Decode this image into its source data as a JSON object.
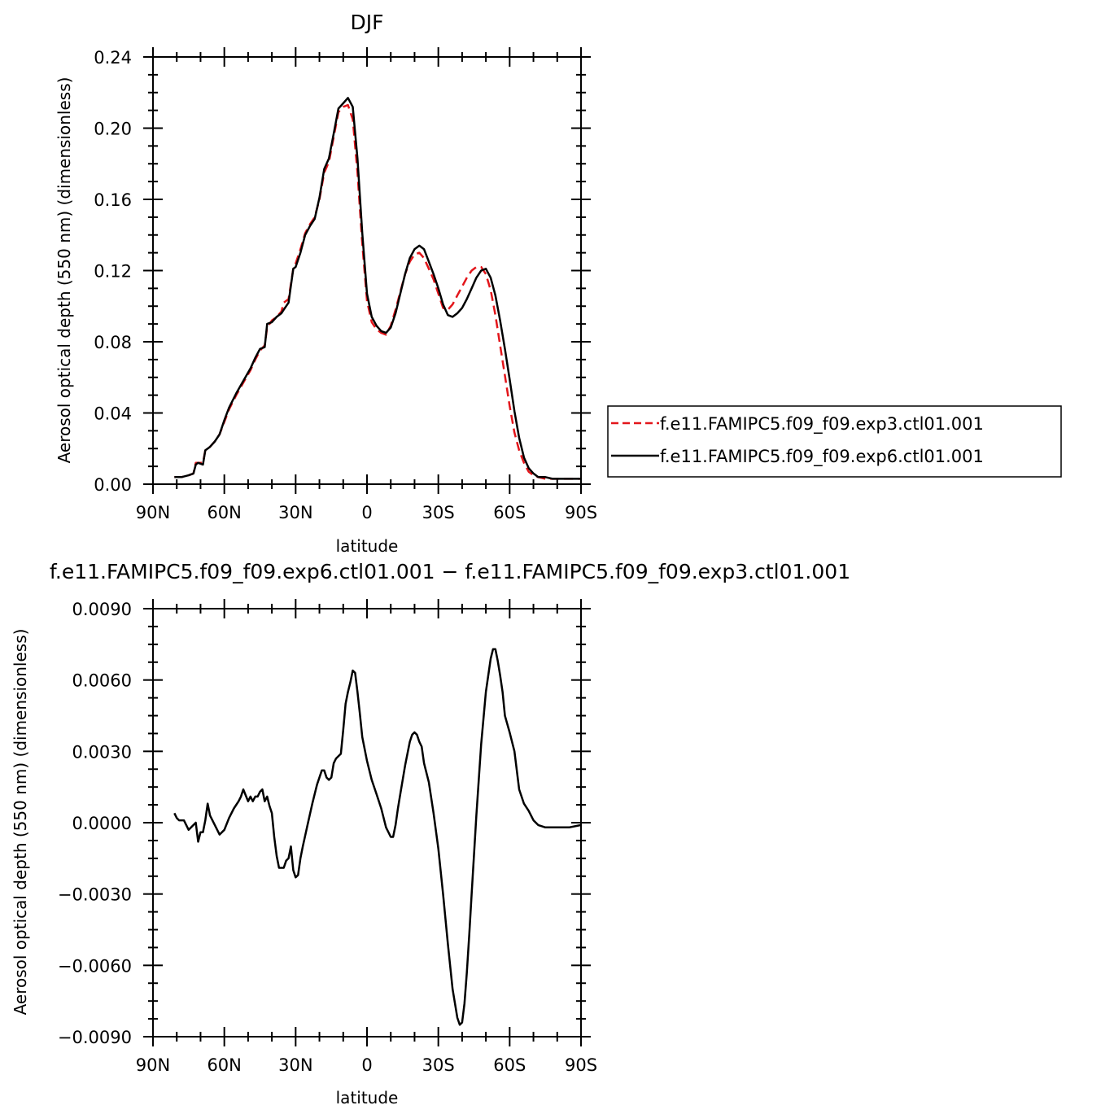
{
  "chart_data": [
    {
      "type": "line",
      "title": "DJF",
      "xlabel": "latitude",
      "ylabel": "Aerosol optical depth (550 nm) (dimensionless)",
      "xlim": [
        -90,
        90
      ],
      "ylim": [
        0.0,
        0.24
      ],
      "x_ticks": [
        "90N",
        "60N",
        "30N",
        "0",
        "30S",
        "60S",
        "90S"
      ],
      "y_ticks": [
        "0.00",
        "0.04",
        "0.08",
        "0.12",
        "0.16",
        "0.20",
        "0.24"
      ],
      "legend_position": "right",
      "series": [
        {
          "name": "f.e11.FAMIPC5.f09_f09.exp3.ctl01.001",
          "color": "#e3161b",
          "dash": "dashed",
          "x": [
            -81,
            -78,
            -75,
            -73,
            -72,
            -71,
            -69,
            -68,
            -66,
            -64,
            -62,
            -60,
            -58,
            -55,
            -52,
            -49,
            -47,
            -45,
            -43,
            -42,
            -40,
            -38,
            -36,
            -35,
            -33,
            -31,
            -30,
            -28,
            -26,
            -24,
            -22,
            -20,
            -18,
            -16,
            -14,
            -12,
            -10,
            -8,
            -6,
            -4,
            -2,
            0,
            2,
            4,
            6,
            8,
            10,
            12,
            14,
            16,
            18,
            20,
            22,
            24,
            26,
            28,
            30,
            32,
            34,
            36,
            38,
            40,
            42,
            44,
            46,
            48,
            50,
            52,
            54,
            56,
            58,
            60,
            62,
            64,
            66,
            68,
            70,
            72,
            75,
            78,
            82,
            86,
            90
          ],
          "y": [
            0.004,
            0.004,
            0.005,
            0.006,
            0.012,
            0.012,
            0.012,
            0.019,
            0.021,
            0.024,
            0.028,
            0.035,
            0.042,
            0.05,
            0.057,
            0.064,
            0.07,
            0.075,
            0.078,
            0.088,
            0.092,
            0.094,
            0.097,
            0.102,
            0.104,
            0.121,
            0.124,
            0.132,
            0.141,
            0.146,
            0.15,
            0.16,
            0.175,
            0.181,
            0.195,
            0.209,
            0.212,
            0.213,
            0.205,
            0.175,
            0.135,
            0.103,
            0.091,
            0.087,
            0.085,
            0.084,
            0.089,
            0.098,
            0.108,
            0.118,
            0.125,
            0.129,
            0.13,
            0.127,
            0.121,
            0.115,
            0.107,
            0.099,
            0.098,
            0.101,
            0.106,
            0.111,
            0.116,
            0.12,
            0.122,
            0.122,
            0.118,
            0.109,
            0.095,
            0.078,
            0.061,
            0.044,
            0.029,
            0.019,
            0.012,
            0.007,
            0.005,
            0.004,
            0.003,
            0.003,
            0.003,
            0.003,
            0.003
          ]
        },
        {
          "name": "f.e11.FAMIPC5.f09_f09.exp6.ctl01.001",
          "color": "#000000",
          "dash": "solid",
          "x": [
            -81,
            -78,
            -75,
            -73,
            -72,
            -71,
            -69,
            -68,
            -66,
            -64,
            -62,
            -60,
            -58,
            -55,
            -52,
            -49,
            -47,
            -45,
            -43,
            -42,
            -40,
            -38,
            -36,
            -35,
            -33,
            -31,
            -30,
            -28,
            -26,
            -24,
            -22,
            -20,
            -18,
            -16,
            -14,
            -12,
            -10,
            -8,
            -6,
            -4,
            -2,
            0,
            2,
            4,
            6,
            8,
            10,
            12,
            14,
            16,
            18,
            20,
            22,
            24,
            26,
            28,
            30,
            32,
            34,
            36,
            38,
            40,
            42,
            44,
            46,
            48,
            50,
            52,
            54,
            56,
            58,
            60,
            62,
            64,
            66,
            68,
            70,
            72,
            75,
            78,
            82,
            86,
            90
          ],
          "y": [
            0.004,
            0.004,
            0.005,
            0.006,
            0.011,
            0.012,
            0.011,
            0.019,
            0.021,
            0.024,
            0.028,
            0.036,
            0.043,
            0.051,
            0.058,
            0.065,
            0.071,
            0.076,
            0.077,
            0.09,
            0.091,
            0.094,
            0.096,
            0.098,
            0.102,
            0.121,
            0.122,
            0.13,
            0.14,
            0.145,
            0.149,
            0.161,
            0.177,
            0.183,
            0.197,
            0.211,
            0.214,
            0.217,
            0.212,
            0.183,
            0.141,
            0.107,
            0.094,
            0.089,
            0.086,
            0.085,
            0.088,
            0.096,
            0.107,
            0.118,
            0.127,
            0.132,
            0.134,
            0.132,
            0.125,
            0.118,
            0.11,
            0.101,
            0.095,
            0.094,
            0.096,
            0.099,
            0.104,
            0.11,
            0.116,
            0.12,
            0.121,
            0.116,
            0.106,
            0.092,
            0.076,
            0.059,
            0.041,
            0.026,
            0.015,
            0.009,
            0.006,
            0.004,
            0.004,
            0.003,
            0.003,
            0.003,
            0.003
          ]
        }
      ]
    },
    {
      "type": "line",
      "title": "f.e11.FAMIPC5.f09_f09.exp6.ctl01.001 − f.e11.FAMIPC5.f09_f09.exp3.ctl01.001",
      "xlabel": "latitude",
      "ylabel": "Aerosol optical depth (550 nm) (dimensionless)",
      "xlim": [
        -90,
        90
      ],
      "ylim": [
        -0.009,
        0.009
      ],
      "x_ticks": [
        "90N",
        "60N",
        "30N",
        "0",
        "30S",
        "60S",
        "90S"
      ],
      "y_ticks": [
        "−0.0090",
        "−0.0060",
        "−0.0030",
        "0.0000",
        "0.0030",
        "0.0060",
        "0.0090"
      ],
      "series": [
        {
          "color": "#000000",
          "dash": "solid",
          "x": [
            -81,
            -80,
            -79,
            -77,
            -75,
            -73,
            -72,
            -71,
            -70,
            -69,
            -68,
            -67,
            -66,
            -64,
            -62,
            -60,
            -58,
            -56,
            -54,
            -53,
            -52,
            -50,
            -49,
            -48,
            -47,
            -46,
            -45,
            -44,
            -43,
            -42,
            -41,
            -40,
            -39,
            -38,
            -37,
            -36,
            -35,
            -34,
            -33,
            -32,
            -31,
            -30,
            -29,
            -28,
            -27,
            -25,
            -23,
            -21,
            -19,
            -18,
            -17,
            -16,
            -15,
            -14,
            -13,
            -12,
            -11,
            -10,
            -9,
            -8,
            -7,
            -6,
            -5,
            -4,
            -3,
            -2,
            0,
            2,
            4,
            6,
            8,
            10,
            11,
            12,
            13,
            14,
            16,
            18,
            19,
            20,
            21,
            22,
            23,
            24,
            26,
            28,
            30,
            32,
            34,
            36,
            38,
            39,
            40,
            41,
            42,
            43,
            44,
            46,
            48,
            50,
            52,
            53,
            54,
            55,
            56,
            57,
            58,
            60,
            62,
            64,
            66,
            68,
            70,
            72,
            75,
            80,
            85,
            90
          ],
          "y": [
            0.0004,
            0.0002,
            0.0001,
            0.0001,
            -0.0003,
            -0.0001,
            0.0,
            -0.0008,
            -0.0004,
            -0.0004,
            0.0001,
            0.0008,
            0.0003,
            -0.0001,
            -0.0005,
            -0.0003,
            0.0002,
            0.0006,
            0.0009,
            0.0011,
            0.0014,
            0.0009,
            0.0011,
            0.0009,
            0.0011,
            0.0011,
            0.0013,
            0.0014,
            0.0009,
            0.0011,
            0.0007,
            0.0004,
            -0.0006,
            -0.0014,
            -0.0019,
            -0.0019,
            -0.0019,
            -0.0016,
            -0.0015,
            -0.001,
            -0.002,
            -0.0023,
            -0.0022,
            -0.0015,
            -0.001,
            -0.0001,
            0.0008,
            0.0016,
            0.0022,
            0.0022,
            0.0019,
            0.0018,
            0.0019,
            0.0025,
            0.0027,
            0.0028,
            0.0029,
            0.0039,
            0.005,
            0.0055,
            0.0059,
            0.0064,
            0.0063,
            0.0055,
            0.0046,
            0.0036,
            0.0026,
            0.0018,
            0.0012,
            0.0006,
            -0.0002,
            -0.0006,
            -0.0006,
            -0.0001,
            0.0006,
            0.0012,
            0.0024,
            0.0034,
            0.0037,
            0.0038,
            0.0037,
            0.0034,
            0.0032,
            0.0025,
            0.0017,
            0.0004,
            -0.0011,
            -0.003,
            -0.0051,
            -0.007,
            -0.0082,
            -0.0085,
            -0.0084,
            -0.0076,
            -0.0063,
            -0.0047,
            -0.003,
            0.0003,
            0.0033,
            0.0055,
            0.0069,
            0.0073,
            0.0073,
            0.0068,
            0.0062,
            0.0055,
            0.0045,
            0.0038,
            0.003,
            0.0014,
            0.0008,
            0.0005,
            0.0001,
            -0.0001,
            -0.0002,
            -0.0002,
            -0.0002,
            -0.0001
          ]
        }
      ]
    }
  ]
}
